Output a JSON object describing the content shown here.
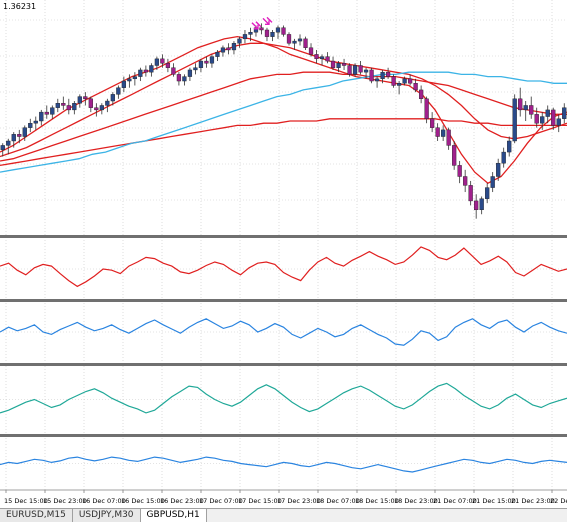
{
  "window": {
    "price_label": "1.36231"
  },
  "timeline": {
    "labels": [
      "15 Dec 15:00",
      "15 Dec 23:00",
      "16 Dec 07:00",
      "16 Dec 15:00",
      "16 Dec 23:00",
      "17 Dec 07:00",
      "17 Dec 15:00",
      "17 Dec 23:00",
      "18 Dec 07:00",
      "18 Dec 15:00",
      "18 Dec 23:00",
      "21 Dec 07:00",
      "21 Dec 15:00",
      "21 Dec 23:00",
      "22 Dec"
    ]
  },
  "tabs": [
    {
      "label": "EURUSD,M15",
      "active": false
    },
    {
      "label": "USDJPY,M30",
      "active": false
    },
    {
      "label": "GBPUSD,H1",
      "active": true
    }
  ],
  "colors": {
    "background": "#ffffff",
    "grid": "#c8c8c8",
    "bull_candle": "#2a4a8a",
    "bear_candle": "#a0208c",
    "ma_red": "#e02020",
    "ma_cyan": "#3cb4e6",
    "osc_red": "#e02020",
    "osc_blue": "#2a84e0",
    "osc_teal": "#20a898",
    "separator": "#707070",
    "arrow_marker": "#e020c0"
  },
  "chart_data": {
    "type": "line",
    "candles": [
      [
        37,
        40,
        34,
        39
      ],
      [
        39,
        42,
        35,
        41
      ],
      [
        41,
        45,
        38,
        44
      ],
      [
        44,
        46,
        40,
        43
      ],
      [
        43,
        48,
        41,
        47
      ],
      [
        47,
        51,
        45,
        49
      ],
      [
        49,
        52,
        46,
        50
      ],
      [
        50,
        55,
        48,
        54
      ],
      [
        54,
        57,
        51,
        53
      ],
      [
        53,
        57,
        51,
        56
      ],
      [
        56,
        60,
        54,
        58
      ],
      [
        58,
        61,
        55,
        57
      ],
      [
        57,
        60,
        53,
        55
      ],
      [
        55,
        59,
        53,
        58
      ],
      [
        58,
        62,
        56,
        61
      ],
      [
        61,
        63,
        57,
        60
      ],
      [
        60,
        61,
        54,
        56
      ],
      [
        56,
        58,
        52,
        55
      ],
      [
        55,
        58,
        53,
        57
      ],
      [
        57,
        60,
        54,
        59
      ],
      [
        59,
        63,
        57,
        62
      ],
      [
        62,
        66,
        60,
        65
      ],
      [
        65,
        70,
        63,
        68
      ],
      [
        68,
        71,
        65,
        69
      ],
      [
        69,
        72,
        66,
        70
      ],
      [
        70,
        74,
        68,
        73
      ],
      [
        73,
        75,
        70,
        72
      ],
      [
        72,
        76,
        70,
        75
      ],
      [
        75,
        79,
        73,
        78
      ],
      [
        78,
        80,
        74,
        76
      ],
      [
        76,
        78,
        72,
        74
      ],
      [
        74,
        76,
        70,
        71
      ],
      [
        71,
        72,
        66,
        68
      ],
      [
        68,
        71,
        66,
        70
      ],
      [
        70,
        74,
        68,
        73
      ],
      [
        73,
        76,
        71,
        74
      ],
      [
        74,
        78,
        72,
        77
      ],
      [
        77,
        79,
        74,
        76
      ],
      [
        76,
        80,
        74,
        79
      ],
      [
        79,
        82,
        77,
        81
      ],
      [
        81,
        84,
        79,
        83
      ],
      [
        83,
        85,
        80,
        82
      ],
      [
        82,
        86,
        80,
        85
      ],
      [
        85,
        88,
        83,
        87
      ],
      [
        87,
        91,
        85,
        89
      ],
      [
        89,
        92,
        86,
        90
      ],
      [
        90,
        93,
        88,
        92
      ],
      [
        92,
        94,
        89,
        91
      ],
      [
        91,
        92,
        86,
        88
      ],
      [
        88,
        91,
        86,
        90
      ],
      [
        90,
        93,
        87,
        92
      ],
      [
        92,
        93,
        88,
        89
      ],
      [
        89,
        90,
        84,
        85
      ],
      [
        85,
        87,
        82,
        86
      ],
      [
        86,
        89,
        84,
        87
      ],
      [
        87,
        88,
        82,
        83
      ],
      [
        83,
        85,
        79,
        80
      ],
      [
        80,
        82,
        76,
        78
      ],
      [
        78,
        80,
        75,
        79
      ],
      [
        79,
        81,
        76,
        77
      ],
      [
        77,
        79,
        73,
        74
      ],
      [
        74,
        77,
        72,
        76
      ],
      [
        76,
        78,
        73,
        75
      ],
      [
        75,
        76,
        70,
        71
      ],
      [
        71,
        76,
        70,
        75
      ],
      [
        75,
        77,
        71,
        72
      ],
      [
        72,
        74,
        69,
        73
      ],
      [
        73,
        74,
        67,
        68
      ],
      [
        68,
        70,
        65,
        69
      ],
      [
        69,
        73,
        67,
        72
      ],
      [
        72,
        74,
        69,
        70
      ],
      [
        70,
        71,
        65,
        66
      ],
      [
        66,
        68,
        62,
        67
      ],
      [
        67,
        70,
        66,
        69
      ],
      [
        69,
        71,
        66,
        67
      ],
      [
        67,
        69,
        63,
        64
      ],
      [
        64,
        66,
        58,
        60
      ],
      [
        60,
        61,
        49,
        51
      ],
      [
        51,
        54,
        45,
        47
      ],
      [
        47,
        49,
        41,
        43
      ],
      [
        43,
        48,
        41,
        46
      ],
      [
        46,
        47,
        37,
        39
      ],
      [
        39,
        41,
        28,
        30
      ],
      [
        30,
        32,
        22,
        25
      ],
      [
        25,
        28,
        18,
        21
      ],
      [
        21,
        23,
        12,
        14
      ],
      [
        14,
        17,
        6,
        10
      ],
      [
        10,
        16,
        8,
        15
      ],
      [
        15,
        22,
        13,
        20
      ],
      [
        20,
        27,
        18,
        25
      ],
      [
        25,
        33,
        23,
        31
      ],
      [
        31,
        38,
        29,
        36
      ],
      [
        36,
        43,
        34,
        41
      ],
      [
        41,
        62,
        40,
        60
      ],
      [
        60,
        65,
        52,
        55
      ],
      [
        55,
        59,
        50,
        57
      ],
      [
        57,
        61,
        51,
        53
      ],
      [
        53,
        56,
        47,
        49
      ],
      [
        49,
        54,
        46,
        52
      ],
      [
        52,
        57,
        49,
        55
      ],
      [
        55,
        56,
        46,
        48
      ],
      [
        48,
        53,
        45,
        51
      ],
      [
        51,
        58,
        49,
        56
      ]
    ],
    "moving_averages": [
      {
        "color": "#e02020",
        "values": [
          36,
          39,
          43,
          47,
          51,
          55,
          58,
          61,
          64,
          67,
          70,
          72,
          74,
          77,
          80,
          83,
          85,
          87,
          88,
          87,
          85,
          83,
          80,
          78,
          76,
          74,
          72,
          70,
          69,
          68,
          67,
          66,
          62,
          55,
          45,
          35,
          27,
          22,
          25,
          32,
          40,
          47,
          52,
          54
        ]
      },
      {
        "color": "#e02020",
        "values": [
          34,
          36,
          38,
          41,
          44,
          47,
          50,
          53,
          56,
          59,
          62,
          65,
          68,
          71,
          74,
          77,
          80,
          82,
          84,
          85,
          85,
          84,
          83,
          81,
          79,
          77,
          76,
          75,
          74,
          73,
          72,
          71,
          69,
          66,
          62,
          57,
          51,
          46,
          43,
          42,
          43,
          45,
          47,
          49
        ]
      },
      {
        "color": "#e02020",
        "values": [
          32,
          33,
          35,
          37,
          39,
          41,
          43,
          45,
          47,
          49,
          51,
          53,
          55,
          57,
          59,
          61,
          63,
          65,
          67,
          69,
          70,
          71,
          71,
          72,
          72,
          72,
          71,
          71,
          70,
          70,
          70,
          69,
          68,
          67,
          66,
          64,
          62,
          60,
          58,
          56,
          55,
          54,
          53,
          53
        ]
      },
      {
        "color": "#e02020",
        "values": [
          30,
          31,
          32,
          33,
          34,
          35,
          36,
          37,
          38,
          39,
          40,
          41,
          42,
          43,
          44,
          45,
          46,
          47,
          48,
          48,
          49,
          49,
          50,
          50,
          50,
          51,
          51,
          51,
          51,
          51,
          51,
          51,
          51,
          51,
          50,
          50,
          49,
          49,
          48,
          48,
          48,
          48,
          48,
          48
        ]
      },
      {
        "color": "#3cb4e6",
        "values": [
          27,
          28,
          29,
          30,
          31,
          32,
          33,
          35,
          36,
          38,
          40,
          41,
          43,
          45,
          47,
          49,
          51,
          53,
          55,
          57,
          59,
          61,
          62,
          64,
          65,
          66,
          68,
          69,
          70,
          71,
          71,
          72,
          72,
          72,
          72,
          71,
          71,
          70,
          70,
          69,
          68,
          68,
          67,
          67
        ]
      }
    ],
    "oscillators": [
      {
        "name": "",
        "color": "#e02020",
        "values": [
          55,
          60,
          48,
          40,
          52,
          58,
          55,
          42,
          30,
          20,
          28,
          38,
          50,
          48,
          42,
          55,
          62,
          70,
          68,
          60,
          55,
          45,
          42,
          48,
          56,
          62,
          58,
          48,
          40,
          52,
          60,
          62,
          58,
          44,
          36,
          30,
          48,
          62,
          70,
          60,
          55,
          65,
          72,
          80,
          72,
          66,
          58,
          62,
          74,
          88,
          82,
          70,
          66,
          74,
          86,
          72,
          58,
          64,
          72,
          62,
          44,
          38,
          48,
          58,
          52,
          46,
          50
        ]
      },
      {
        "name": "",
        "color": "#2a84e0",
        "values": [
          50,
          58,
          52,
          56,
          62,
          50,
          46,
          54,
          60,
          66,
          58,
          52,
          56,
          62,
          54,
          48,
          56,
          64,
          70,
          62,
          55,
          48,
          58,
          66,
          72,
          64,
          56,
          60,
          68,
          62,
          50,
          56,
          64,
          58,
          46,
          40,
          48,
          56,
          50,
          42,
          46,
          56,
          62,
          54,
          46,
          40,
          30,
          28,
          38,
          52,
          48,
          36,
          42,
          58,
          66,
          72,
          62,
          56,
          66,
          70,
          58,
          50,
          60,
          66,
          58,
          52,
          48
        ]
      },
      {
        "name": "",
        "color": "#20a898",
        "values": [
          30,
          34,
          40,
          46,
          50,
          44,
          38,
          42,
          50,
          56,
          62,
          66,
          60,
          52,
          46,
          40,
          36,
          30,
          34,
          44,
          54,
          62,
          70,
          68,
          58,
          50,
          44,
          40,
          46,
          56,
          66,
          72,
          66,
          56,
          46,
          38,
          32,
          36,
          44,
          52,
          60,
          66,
          70,
          64,
          56,
          48,
          40,
          36,
          42,
          52,
          62,
          70,
          74,
          66,
          56,
          48,
          40,
          36,
          42,
          52,
          58,
          50,
          42,
          38,
          44,
          48,
          52
        ]
      },
      {
        "name": "",
        "color": "#2a84e0",
        "values": [
          48,
          52,
          50,
          54,
          58,
          56,
          52,
          55,
          60,
          62,
          58,
          55,
          58,
          62,
          60,
          56,
          54,
          58,
          62,
          60,
          56,
          52,
          55,
          58,
          62,
          60,
          56,
          54,
          50,
          48,
          46,
          44,
          48,
          52,
          50,
          46,
          44,
          48,
          52,
          50,
          46,
          42,
          40,
          44,
          48,
          44,
          40,
          36,
          34,
          38,
          42,
          46,
          50,
          54,
          58,
          56,
          52,
          50,
          54,
          58,
          56,
          52,
          50,
          54,
          56,
          54,
          52
        ]
      }
    ],
    "ylim": [
      0,
      100
    ],
    "grid": true,
    "price_label": "1.36231"
  }
}
